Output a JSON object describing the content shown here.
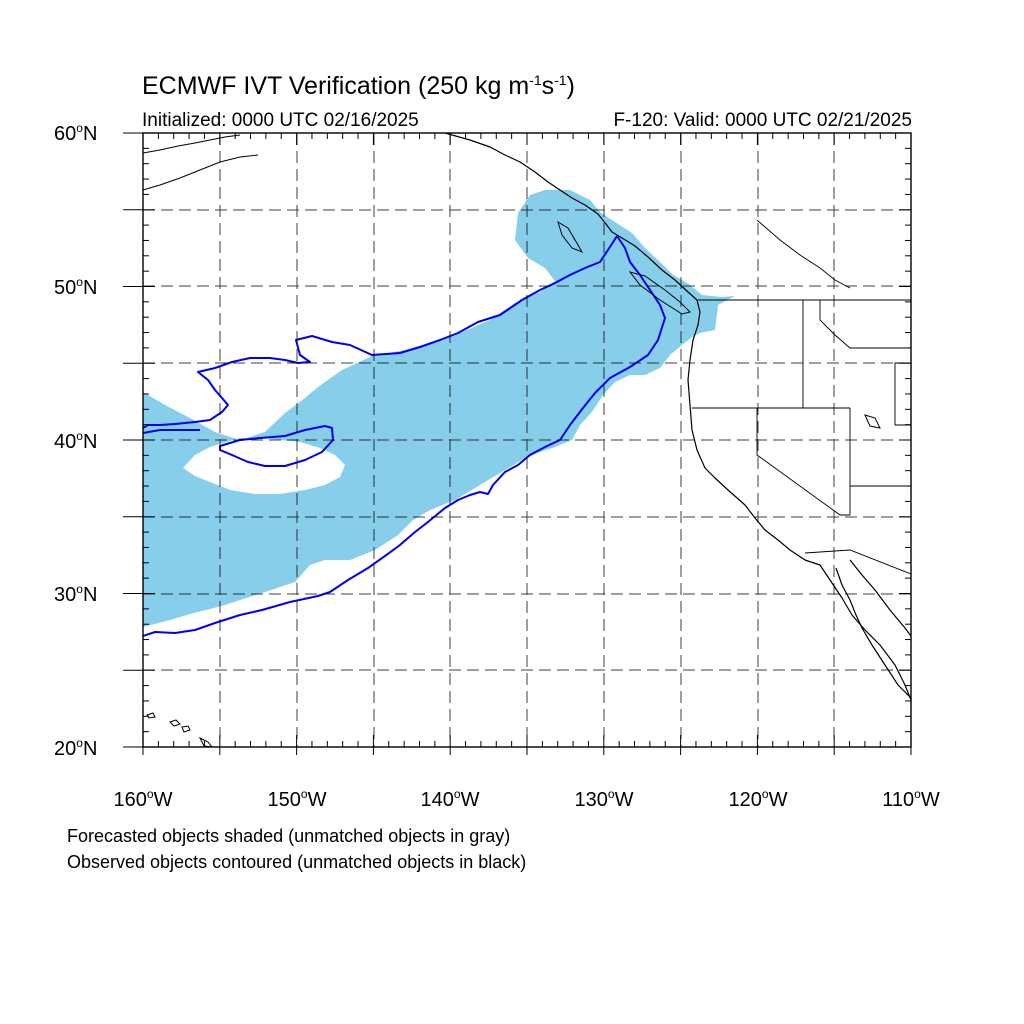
{
  "title": {
    "main": "ECMWF IVT Verification (250 kg m",
    "exp1": "-1",
    "mid": "s",
    "exp2": "-1",
    "end": ")"
  },
  "initialized": "Initialized: 0000 UTC 02/16/2025",
  "valid": "F-120: Valid: 0000 UTC 02/21/2025",
  "lat_labels": [
    {
      "value": "60",
      "suffix": "N"
    },
    {
      "value": "50",
      "suffix": "N"
    },
    {
      "value": "40",
      "suffix": "N"
    },
    {
      "value": "30",
      "suffix": "N"
    },
    {
      "value": "20",
      "suffix": "N"
    }
  ],
  "lon_labels": [
    {
      "value": "160",
      "suffix": "W"
    },
    {
      "value": "150",
      "suffix": "W"
    },
    {
      "value": "140",
      "suffix": "W"
    },
    {
      "value": "130",
      "suffix": "W"
    },
    {
      "value": "120",
      "suffix": "W"
    },
    {
      "value": "110",
      "suffix": "W"
    }
  ],
  "deg_symbol": "o",
  "notes": {
    "line1": "Forecasted objects shaded (unmatched objects in gray)",
    "line2": "Observed objects contoured (unmatched objects in black)"
  },
  "colors": {
    "forecast_fill": "#87ceeb",
    "observed_contour": "#0000ee",
    "coastline": "#000000",
    "grid": "#000000"
  },
  "map_extent": {
    "lon_min": -160,
    "lon_max": -110,
    "lat_min": 20,
    "lat_max": 60
  }
}
